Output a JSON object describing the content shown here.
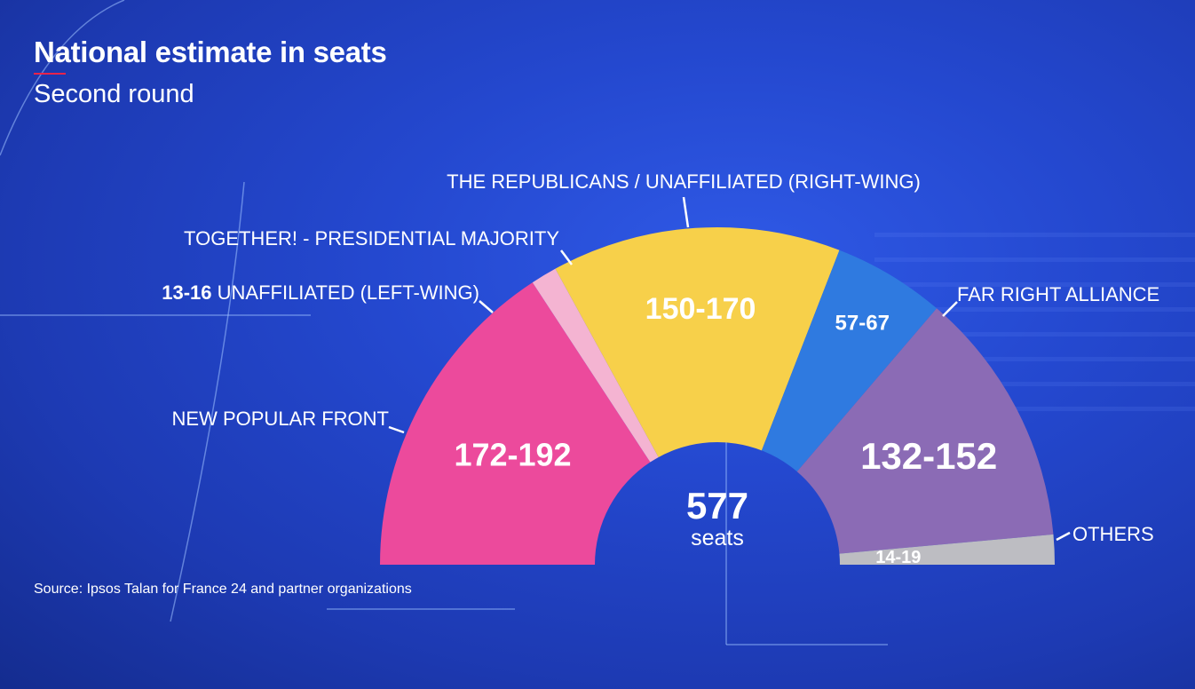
{
  "header": {
    "title": "National estimate in seats",
    "subtitle": "Second round"
  },
  "footer": {
    "source": "Source: Ipsos Talan for France 24 and partner organizations"
  },
  "chart_data": {
    "type": "pie",
    "variant": "semicircle-parliament",
    "title": "National estimate in seats",
    "subtitle": "Second round",
    "total_value": "577",
    "total_label": "seats",
    "series": [
      {
        "name": "NEW POPULAR FRONT",
        "range_label": "172-192",
        "low": 172,
        "high": 192,
        "color": "#ec4a9c"
      },
      {
        "name": "UNAFFILIATED (LEFT-WING)",
        "range_label": "13-16",
        "low": 13,
        "high": 16,
        "color": "#f4b4d2"
      },
      {
        "name": "TOGETHER! - PRESIDENTIAL MAJORITY",
        "range_label": "150-170",
        "low": 150,
        "high": 170,
        "color": "#f7d04a"
      },
      {
        "name": "THE REPUBLICANS / UNAFFILIATED (RIGHT-WING)",
        "range_label": "57-67",
        "low": 57,
        "high": 67,
        "color": "#2f7ae0"
      },
      {
        "name": "FAR RIGHT ALLIANCE",
        "range_label": "132-152",
        "low": 132,
        "high": 152,
        "color": "#8b6bb5"
      },
      {
        "name": "OTHERS",
        "range_label": "14-19",
        "low": 14,
        "high": 19,
        "color": "#bdbdc2"
      }
    ]
  }
}
